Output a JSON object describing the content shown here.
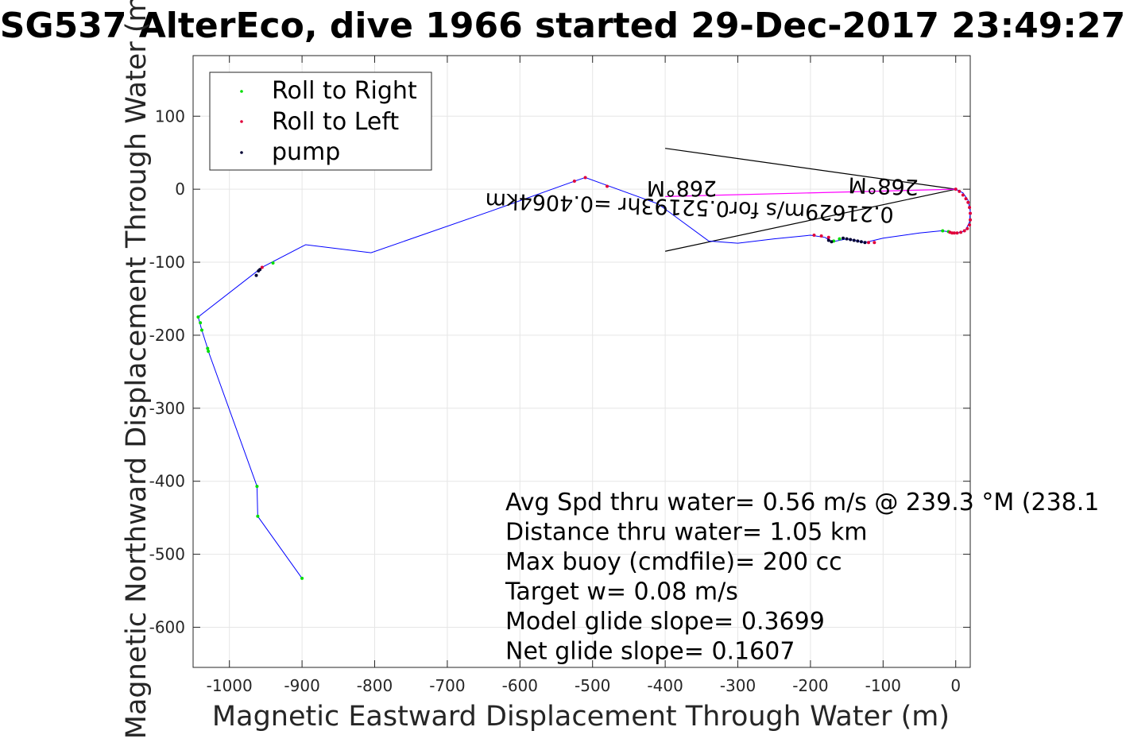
{
  "chart_data": {
    "type": "scatter",
    "title": "SG537 AlterEco, dive 1966 started 29-Dec-2017 23:49:27",
    "xlabel": "Magnetic Eastward Displacement Through Water (m)",
    "ylabel": "Magnetic Northward Displacement Through Water (m)",
    "xlim": [
      -1050,
      20
    ],
    "ylim": [
      -655,
      183
    ],
    "xticks": [
      -1000,
      -900,
      -800,
      -700,
      -600,
      -500,
      -400,
      -300,
      -200,
      -100,
      0
    ],
    "yticks": [
      100,
      0,
      -100,
      -200,
      -300,
      -400,
      -500,
      -600
    ],
    "grid": true,
    "legend_position": "top-left",
    "colors": {
      "track": "#0000ff",
      "roll_right": "#00dd00",
      "roll_left": "#e0003a",
      "pump": "#000033",
      "current_lines": "#000000",
      "current_vector": "#ff00ff"
    },
    "series": [
      {
        "name": "Roll to Right",
        "marker": "dot",
        "x": [
          -1043,
          -1038,
          -1030,
          -1029,
          -962,
          -961,
          -900,
          -940,
          -1040,
          -168,
          -160,
          -18,
          -10
        ],
        "y": [
          -175,
          -193,
          -218,
          -222,
          -407,
          -448,
          -533,
          -101,
          -183,
          -71,
          -68,
          -57,
          -58
        ]
      },
      {
        "name": "Roll to Left",
        "marker": "dot",
        "x": [
          -955,
          -525,
          -510,
          -480,
          -195,
          -185,
          -175,
          -120,
          -112,
          0,
          5,
          10,
          14,
          17,
          19,
          20,
          20,
          19,
          16,
          12,
          7,
          2,
          -2,
          -5,
          -8
        ],
        "y": [
          -107,
          11,
          16,
          4,
          -63,
          -64,
          -66,
          -73,
          -73,
          0,
          -3,
          -8,
          -13,
          -18,
          -25,
          -33,
          -42,
          -49,
          -54,
          -57,
          -59,
          -60,
          -60,
          -60,
          -59
        ]
      },
      {
        "name": "pump",
        "marker": "dot",
        "x": [
          -963,
          -960,
          -958,
          -175,
          -171,
          -155,
          -150,
          -145,
          -140,
          -135,
          -130,
          -125
        ],
        "y": [
          -118,
          -112,
          -110,
          -70,
          -72,
          -67,
          -68,
          -69,
          -70,
          -71,
          -72,
          -73
        ]
      }
    ],
    "track": {
      "x": [
        0,
        10,
        17,
        20,
        19,
        14,
        8,
        0,
        -10,
        -20,
        -50,
        -100,
        -125,
        -150,
        -170,
        -180,
        -200,
        -250,
        -300,
        -340,
        -410,
        -510,
        -525,
        -640,
        -805,
        -895,
        -955,
        -1043,
        -1038,
        -1030,
        -1029,
        -962,
        -961,
        -900
      ],
      "y": [
        0,
        -5,
        -15,
        -30,
        -45,
        -55,
        -59,
        -60,
        -58,
        -57,
        -60,
        -67,
        -73,
        -68,
        -72,
        -66,
        -63,
        -68,
        -74,
        -71,
        -20,
        16,
        11,
        -30,
        -87,
        -76,
        -107,
        -175,
        -193,
        -218,
        -222,
        -407,
        -448,
        -533
      ]
    },
    "current_lines": [
      {
        "x": [
          -400,
          0
        ],
        "y": [
          56,
          0
        ]
      },
      {
        "x": [
          -400,
          0
        ],
        "y": [
          -85,
          0
        ]
      },
      {
        "x": [
          -400,
          0
        ],
        "y": [
          -10,
          0
        ]
      }
    ],
    "annotations": {
      "speed_lines": [
        "Avg Spd thru water=  0.56 m/s @ 239.3 °M (238.1",
        "Distance thru water=  1.05 km",
        "Max buoy (cmdfile)= 200 cc",
        "Target w= 0.08 m/s",
        "Model glide slope= 0.3699",
        "Net glide slope= 0.1607"
      ],
      "current_label_1": "0.21629m/s for0.52193hr =0.4064km",
      "current_label_2": "268°M",
      "current_label_3": "268°M"
    }
  }
}
